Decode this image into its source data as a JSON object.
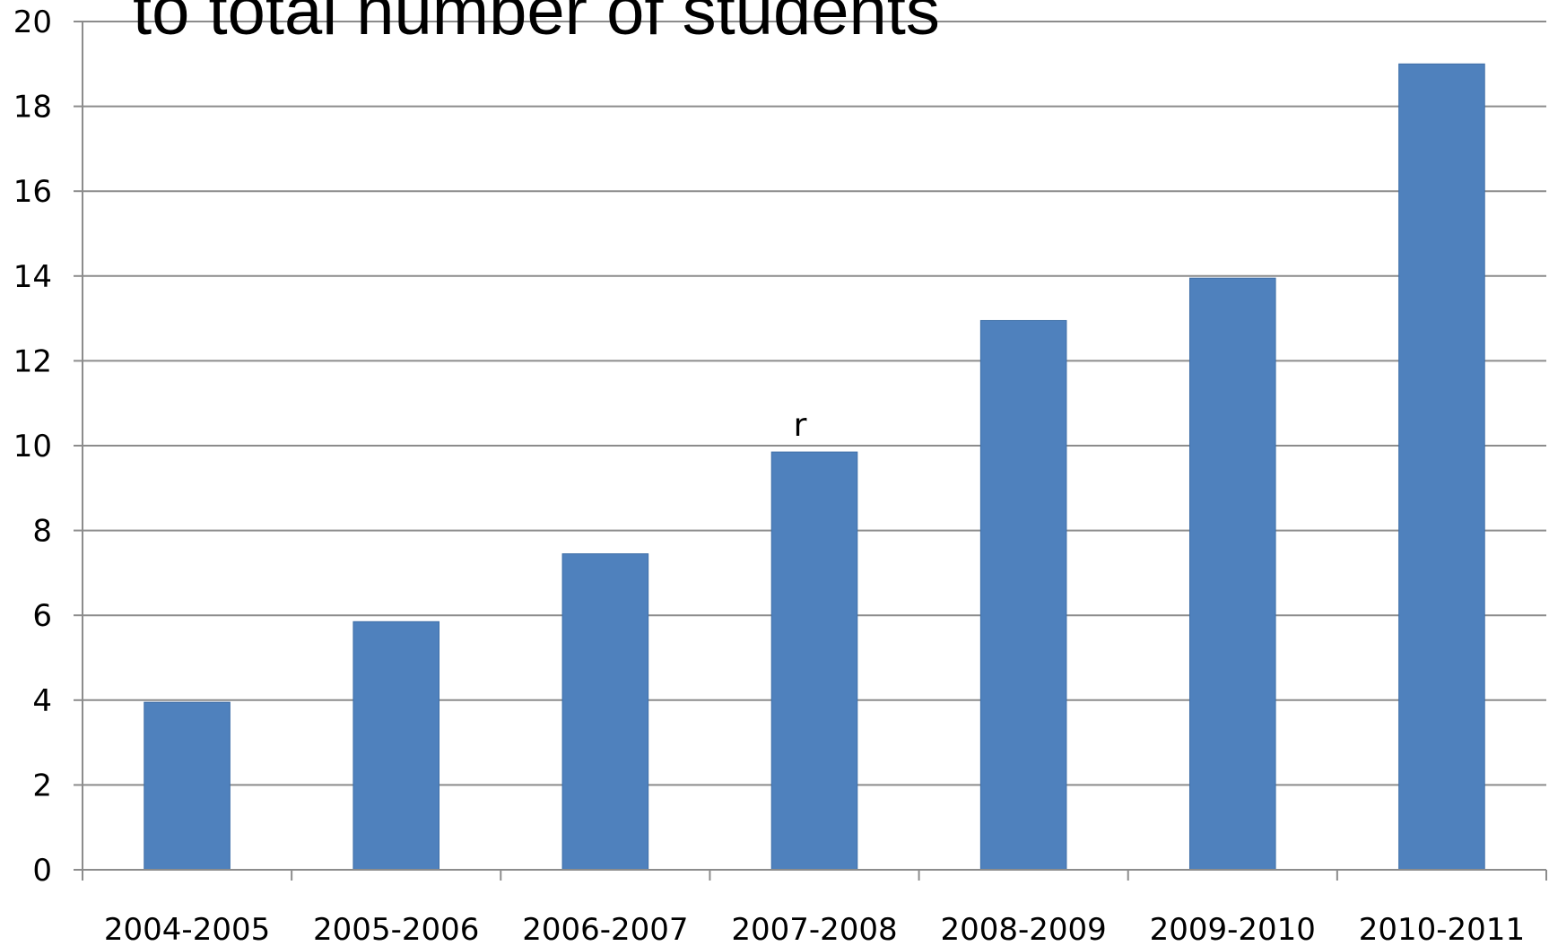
{
  "chart_data": {
    "type": "bar",
    "title": "to total number of students",
    "categories": [
      "2004-2005",
      "2005-2006",
      "2006-2007",
      "2007-2008",
      "2008-2009",
      "2009-2010",
      "2010-2011"
    ],
    "values": [
      3.95,
      5.85,
      7.45,
      9.85,
      12.95,
      13.95,
      19.0
    ],
    "ylim": [
      0,
      20
    ],
    "yticks": [
      "0",
      "2",
      "4",
      "6",
      "8",
      "10",
      "12",
      "14",
      "16",
      "18",
      "20"
    ],
    "grid": true,
    "legend": "none",
    "bar_color": "#4f81bd",
    "annotation": {
      "text": "r",
      "category": "2007-2008"
    }
  }
}
